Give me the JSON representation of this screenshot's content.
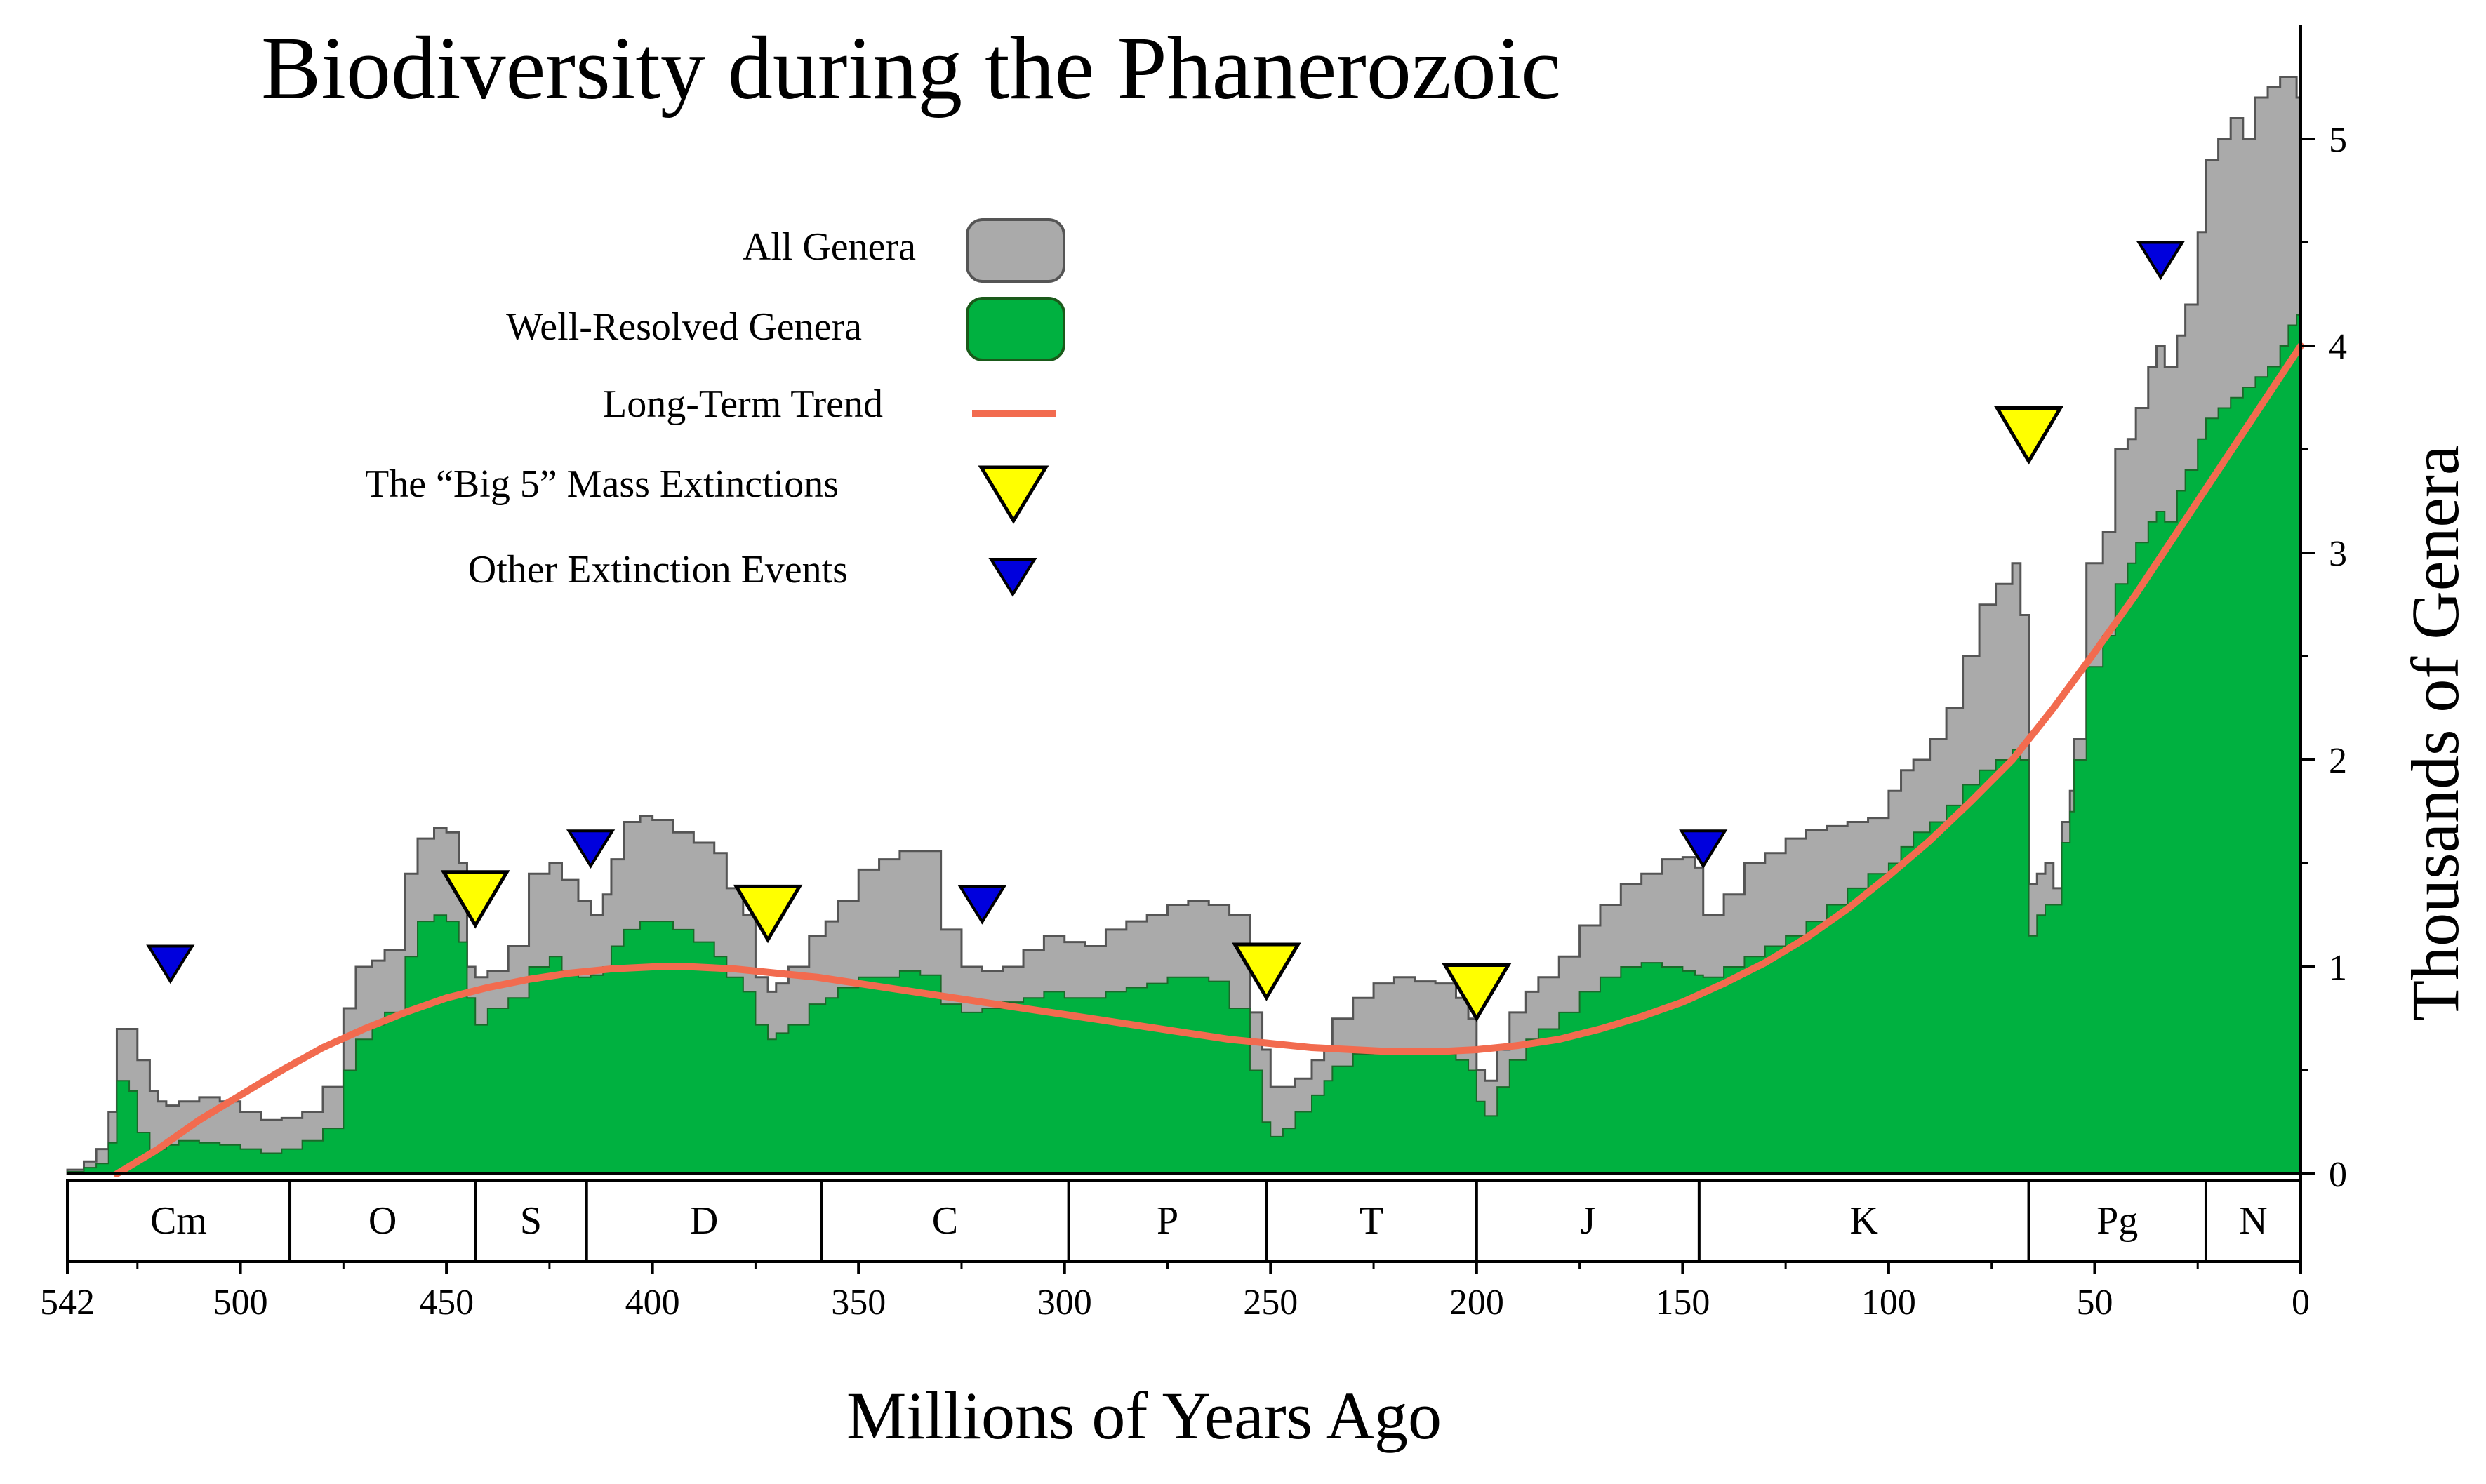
{
  "chart_data": {
    "type": "area",
    "title": "Biodiversity during the Phanerozoic",
    "xlabel": "Millions of Years Ago",
    "ylabel": "Thousands of Genera",
    "xlim": [
      542,
      0
    ],
    "ylim": [
      0,
      5.5
    ],
    "x_ticks": [
      542,
      500,
      450,
      400,
      350,
      300,
      250,
      200,
      150,
      100,
      50,
      0
    ],
    "y_ticks": [
      0,
      1,
      2,
      3,
      4,
      5
    ],
    "legend": {
      "all_genera": "All Genera",
      "well_resolved": "Well-Resolved Genera",
      "trend": "Long-Term Trend",
      "big5": "The “Big 5” Mass Extinctions",
      "other": "Other Extinction Events"
    },
    "colors": {
      "all_genera": "#aaaaaa",
      "well_resolved": "#00b140",
      "trend": "#f26b4f",
      "big5": "#ffff00",
      "other": "#0000dd"
    },
    "periods": [
      {
        "label": "Cm",
        "start": 542,
        "end": 488
      },
      {
        "label": "O",
        "start": 488,
        "end": 443
      },
      {
        "label": "S",
        "start": 443,
        "end": 416
      },
      {
        "label": "D",
        "start": 416,
        "end": 359
      },
      {
        "label": "C",
        "start": 359,
        "end": 299
      },
      {
        "label": "P",
        "start": 299,
        "end": 251
      },
      {
        "label": "T",
        "start": 251,
        "end": 200
      },
      {
        "label": "J",
        "start": 200,
        "end": 146
      },
      {
        "label": "K",
        "start": 146,
        "end": 66
      },
      {
        "label": "Pg",
        "start": 66,
        "end": 23
      },
      {
        "label": "N",
        "start": 23,
        "end": 0
      }
    ],
    "series": [
      {
        "name": "All Genera",
        "x": [
          542,
          538,
          535,
          532,
          530,
          527,
          525,
          522,
          520,
          518,
          515,
          510,
          505,
          500,
          495,
          490,
          485,
          480,
          475,
          472,
          468,
          465,
          460,
          457,
          453,
          450,
          447,
          445,
          443,
          440,
          435,
          430,
          425,
          422,
          418,
          415,
          412,
          410,
          407,
          403,
          400,
          395,
          390,
          385,
          382,
          378,
          375,
          372,
          370,
          367,
          362,
          358,
          355,
          350,
          345,
          340,
          335,
          330,
          325,
          320,
          315,
          310,
          305,
          300,
          295,
          290,
          285,
          280,
          275,
          270,
          265,
          260,
          255,
          252,
          250,
          247,
          244,
          240,
          237,
          235,
          230,
          225,
          220,
          215,
          210,
          205,
          202,
          200,
          198,
          195,
          192,
          188,
          185,
          180,
          175,
          170,
          165,
          160,
          155,
          150,
          147,
          145,
          140,
          135,
          130,
          125,
          120,
          115,
          110,
          105,
          100,
          97,
          94,
          90,
          86,
          82,
          78,
          74,
          70,
          68,
          66,
          64,
          62,
          60,
          58,
          56,
          55,
          52,
          48,
          45,
          42,
          40,
          37,
          35,
          33,
          30,
          28,
          25,
          23,
          20,
          17,
          14,
          11,
          8,
          5,
          3,
          1,
          0
        ],
        "values": [
          0.02,
          0.06,
          0.12,
          0.3,
          0.7,
          0.7,
          0.55,
          0.4,
          0.35,
          0.33,
          0.35,
          0.37,
          0.35,
          0.3,
          0.26,
          0.27,
          0.3,
          0.42,
          0.8,
          1.0,
          1.03,
          1.08,
          1.45,
          1.62,
          1.67,
          1.65,
          1.5,
          1.0,
          0.95,
          0.98,
          1.1,
          1.45,
          1.5,
          1.42,
          1.32,
          1.25,
          1.35,
          1.52,
          1.7,
          1.73,
          1.71,
          1.65,
          1.6,
          1.55,
          1.38,
          1.25,
          0.95,
          0.88,
          0.92,
          1.0,
          1.15,
          1.22,
          1.32,
          1.47,
          1.52,
          1.56,
          1.56,
          1.18,
          1.0,
          0.98,
          1.0,
          1.08,
          1.15,
          1.12,
          1.1,
          1.18,
          1.22,
          1.25,
          1.3,
          1.32,
          1.3,
          1.25,
          0.78,
          0.6,
          0.42,
          0.42,
          0.46,
          0.55,
          0.6,
          0.75,
          0.85,
          0.92,
          0.95,
          0.93,
          0.92,
          0.85,
          0.75,
          0.5,
          0.45,
          0.6,
          0.78,
          0.88,
          0.95,
          1.05,
          1.2,
          1.3,
          1.4,
          1.45,
          1.52,
          1.53,
          1.48,
          1.25,
          1.35,
          1.5,
          1.55,
          1.62,
          1.66,
          1.68,
          1.7,
          1.72,
          1.85,
          1.95,
          2.0,
          2.1,
          2.25,
          2.5,
          2.75,
          2.85,
          2.95,
          2.7,
          1.4,
          1.45,
          1.5,
          1.38,
          1.7,
          1.85,
          2.1,
          2.95,
          3.1,
          3.5,
          3.55,
          3.7,
          3.9,
          4.0,
          3.9,
          4.05,
          4.2,
          4.55,
          4.9,
          5.0,
          5.1,
          5.0,
          5.2,
          5.25,
          5.3,
          5.3,
          5.2,
          5.15
        ]
      },
      {
        "name": "Well-Resolved Genera",
        "x": [
          542,
          538,
          535,
          532,
          530,
          527,
          525,
          522,
          520,
          518,
          515,
          510,
          505,
          500,
          495,
          490,
          485,
          480,
          475,
          472,
          468,
          465,
          460,
          457,
          453,
          450,
          447,
          445,
          443,
          440,
          435,
          430,
          425,
          422,
          418,
          415,
          412,
          410,
          407,
          403,
          400,
          395,
          390,
          385,
          382,
          378,
          375,
          372,
          370,
          367,
          362,
          358,
          355,
          350,
          345,
          340,
          335,
          330,
          325,
          320,
          315,
          310,
          305,
          300,
          295,
          290,
          285,
          280,
          275,
          270,
          265,
          260,
          255,
          252,
          250,
          247,
          244,
          240,
          237,
          235,
          230,
          225,
          220,
          215,
          210,
          205,
          202,
          200,
          198,
          195,
          192,
          188,
          185,
          180,
          175,
          170,
          165,
          160,
          155,
          150,
          147,
          145,
          140,
          135,
          130,
          125,
          120,
          115,
          110,
          105,
          100,
          97,
          94,
          90,
          86,
          82,
          78,
          74,
          70,
          68,
          66,
          64,
          62,
          60,
          58,
          56,
          55,
          52,
          48,
          45,
          42,
          40,
          37,
          35,
          33,
          30,
          28,
          25,
          23,
          20,
          17,
          14,
          11,
          8,
          5,
          3,
          1,
          0
        ],
        "values": [
          0.01,
          0.03,
          0.05,
          0.15,
          0.45,
          0.4,
          0.2,
          0.1,
          0.12,
          0.14,
          0.16,
          0.15,
          0.14,
          0.12,
          0.1,
          0.12,
          0.16,
          0.22,
          0.5,
          0.65,
          0.72,
          0.78,
          1.05,
          1.22,
          1.25,
          1.22,
          1.12,
          0.85,
          0.72,
          0.8,
          0.85,
          1.0,
          1.05,
          0.98,
          0.95,
          0.96,
          1.0,
          1.1,
          1.18,
          1.22,
          1.22,
          1.18,
          1.12,
          1.05,
          0.95,
          0.88,
          0.72,
          0.65,
          0.68,
          0.72,
          0.82,
          0.85,
          0.9,
          0.95,
          0.95,
          0.98,
          0.96,
          0.82,
          0.78,
          0.8,
          0.83,
          0.85,
          0.88,
          0.85,
          0.85,
          0.88,
          0.9,
          0.92,
          0.95,
          0.95,
          0.93,
          0.8,
          0.5,
          0.25,
          0.18,
          0.22,
          0.3,
          0.38,
          0.45,
          0.52,
          0.58,
          0.6,
          0.6,
          0.6,
          0.58,
          0.55,
          0.5,
          0.35,
          0.28,
          0.42,
          0.55,
          0.65,
          0.7,
          0.78,
          0.88,
          0.95,
          1.0,
          1.02,
          1.0,
          0.98,
          0.96,
          0.95,
          1.0,
          1.05,
          1.1,
          1.15,
          1.22,
          1.3,
          1.38,
          1.45,
          1.5,
          1.58,
          1.65,
          1.7,
          1.78,
          1.88,
          1.95,
          2.0,
          2.05,
          2.0,
          1.15,
          1.25,
          1.3,
          1.3,
          1.6,
          1.75,
          2.0,
          2.45,
          2.6,
          2.85,
          2.95,
          3.05,
          3.15,
          3.2,
          3.15,
          3.3,
          3.4,
          3.55,
          3.65,
          3.7,
          3.75,
          3.8,
          3.85,
          3.9,
          4.0,
          4.1,
          4.15,
          4.2
        ]
      },
      {
        "name": "Long-Term Trend",
        "x": [
          530,
          520,
          510,
          500,
          490,
          480,
          470,
          460,
          450,
          440,
          430,
          420,
          410,
          400,
          390,
          380,
          370,
          360,
          350,
          340,
          330,
          320,
          310,
          300,
          290,
          280,
          270,
          260,
          250,
          240,
          230,
          220,
          210,
          200,
          190,
          180,
          170,
          160,
          150,
          140,
          130,
          120,
          110,
          100,
          90,
          80,
          70,
          60,
          50,
          40,
          30,
          20,
          10,
          0
        ],
        "values": [
          0.0,
          0.12,
          0.26,
          0.38,
          0.5,
          0.61,
          0.7,
          0.78,
          0.85,
          0.9,
          0.94,
          0.97,
          0.99,
          1.0,
          1.0,
          0.99,
          0.97,
          0.95,
          0.92,
          0.89,
          0.86,
          0.83,
          0.8,
          0.77,
          0.74,
          0.71,
          0.68,
          0.65,
          0.63,
          0.61,
          0.6,
          0.59,
          0.59,
          0.6,
          0.62,
          0.65,
          0.7,
          0.76,
          0.83,
          0.92,
          1.02,
          1.14,
          1.28,
          1.44,
          1.61,
          1.8,
          2.0,
          2.25,
          2.52,
          2.8,
          3.1,
          3.4,
          3.7,
          4.0
        ]
      }
    ],
    "big5_extinctions": [
      443,
      372,
      251,
      200,
      66
    ],
    "other_extinctions": [
      517,
      415,
      320,
      145,
      34
    ]
  }
}
